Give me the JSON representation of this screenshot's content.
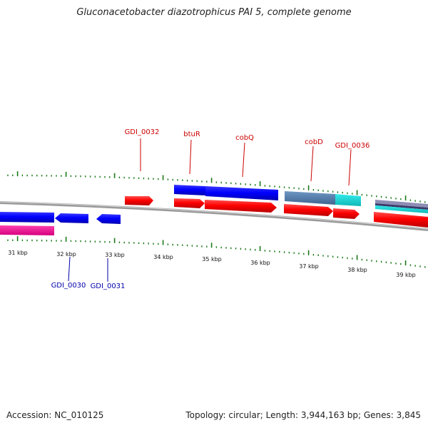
{
  "title": "Gluconacetobacter diazotrophicus PAI 5, complete genome",
  "footer": {
    "accession": "Accession: NC_010125",
    "summary": "Topology: circular; Length: 3,944,163 bp; Genes: 3,845"
  },
  "colors": {
    "forward_label": "#cc0000",
    "reverse_label": "#0000aa",
    "tick": "#1a7a1a",
    "backbone": "#8a8a8a"
  },
  "scale_labels": [
    "31 kbp",
    "32 kbp",
    "33 kbp",
    "34 kbp",
    "35 kbp",
    "36 kbp",
    "37 kbp",
    "38 kbp",
    "39 kbp"
  ],
  "gene_labels_top": [
    "GDI_0032",
    "btuR",
    "cobQ",
    "cobD",
    "GDI_0036"
  ],
  "gene_labels_bottom": [
    "GDI_0030",
    "GDI_0031"
  ]
}
